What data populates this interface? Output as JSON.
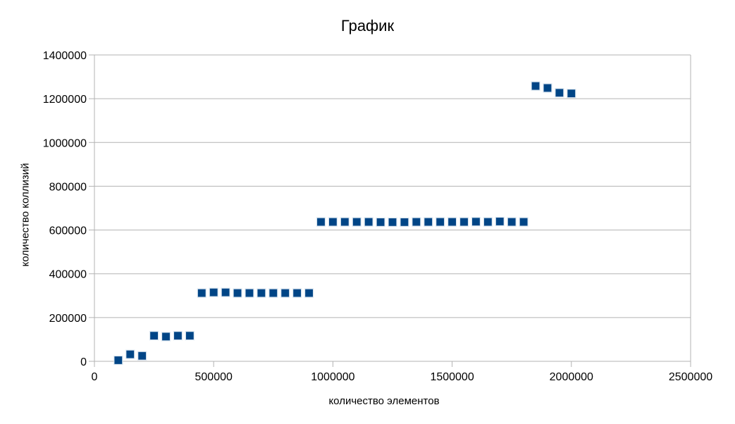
{
  "chart_data": {
    "type": "scatter",
    "title": "График",
    "xlabel": "количество элементов",
    "ylabel": "количество коллизий",
    "xlim": [
      0,
      2500000
    ],
    "ylim": [
      0,
      1400000
    ],
    "x_ticks": [
      0,
      500000,
      1000000,
      1500000,
      2000000,
      2500000
    ],
    "y_ticks": [
      0,
      200000,
      400000,
      600000,
      800000,
      1000000,
      1200000,
      1400000
    ],
    "grid": "horizontal",
    "marker_color": "#004586",
    "series": [
      {
        "x": [
          100000,
          150000,
          200000,
          250000,
          300000,
          350000,
          400000,
          450000,
          500000,
          550000,
          600000,
          650000,
          700000,
          750000,
          800000,
          850000,
          900000,
          950000,
          1000000,
          1050000,
          1100000,
          1150000,
          1200000,
          1250000,
          1300000,
          1350000,
          1400000,
          1450000,
          1500000,
          1550000,
          1600000,
          1650000,
          1700000,
          1750000,
          1800000,
          1850000,
          1900000,
          1950000,
          2000000
        ],
        "y": [
          5000,
          32000,
          25000,
          117000,
          113000,
          117000,
          117000,
          312000,
          315000,
          315000,
          312000,
          312000,
          312000,
          312000,
          312000,
          312000,
          312000,
          637000,
          637000,
          637000,
          637000,
          637000,
          636000,
          636000,
          636000,
          637000,
          637000,
          637000,
          637000,
          637000,
          638000,
          637000,
          639000,
          637000,
          637000,
          1258000,
          1249000,
          1227000,
          1224000
        ]
      }
    ]
  }
}
